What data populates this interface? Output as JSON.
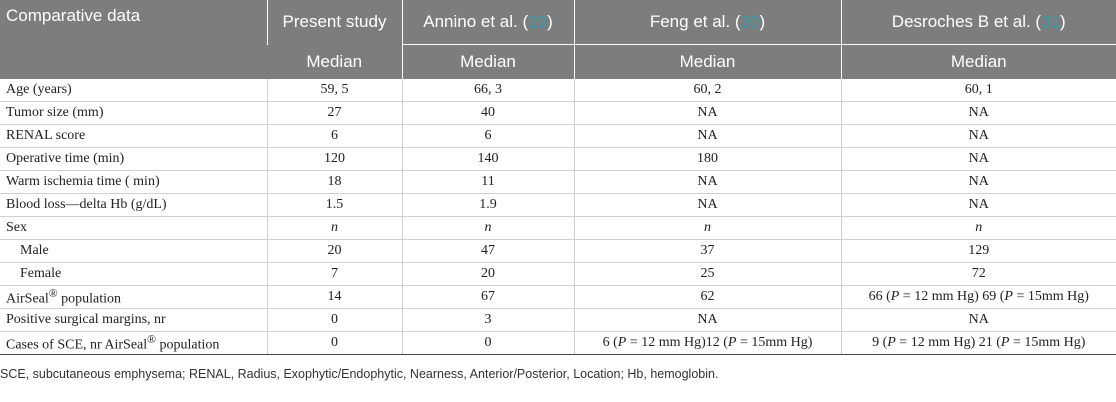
{
  "header": {
    "col0": "Comparative data",
    "col1": "Present study",
    "col2_author": "Annino et al.",
    "col2_ref": "29",
    "col3_author": "Feng et al.",
    "col3_ref": "30",
    "col4_author": "Desroches B et al.",
    "col4_ref": "31",
    "subheader": "Median"
  },
  "rows": [
    {
      "label": "Age (years)",
      "present": "59, 5",
      "annino": "66, 3",
      "feng": "60, 2",
      "desroches": "60, 1"
    },
    {
      "label": "Tumor size (mm)",
      "present": "27",
      "annino": "40",
      "feng": "NA",
      "desroches": "NA"
    },
    {
      "label": "RENAL score",
      "present": "6",
      "annino": "6",
      "feng": "NA",
      "desroches": "NA"
    },
    {
      "label": "Operative time (min)",
      "present": "120",
      "annino": "140",
      "feng": "180",
      "desroches": "NA"
    },
    {
      "label": "Warm ischemia time ( min)",
      "present": "18",
      "annino": "11",
      "feng": "NA",
      "desroches": "NA"
    },
    {
      "label": "Blood loss—delta Hb (g/dL)",
      "present": "1.5",
      "annino": "1.9",
      "feng": "NA",
      "desroches": "NA"
    },
    {
      "label": "Sex",
      "present": "n",
      "annino": "n",
      "feng": "n",
      "desroches": "n"
    },
    {
      "label": "Male",
      "present": "20",
      "annino": "47",
      "feng": "37",
      "desroches": "129"
    },
    {
      "label": "Female",
      "present": "7",
      "annino": "20",
      "feng": "25",
      "desroches": "72"
    },
    {
      "label_pre": "AirSeal",
      "label_sup": "®",
      "label_post": " population",
      "present": "14",
      "annino": "67",
      "feng": "62",
      "desroches_a": "66 (",
      "desroches_p1": "P",
      "desroches_b": " = 12 mm Hg) 69 (",
      "desroches_p2": "P",
      "desroches_c": " = 15mm Hg)"
    },
    {
      "label": "Positive surgical margins, nr",
      "present": "0",
      "annino": "3",
      "feng": "NA",
      "desroches": "NA"
    },
    {
      "label_pre": "Cases of SCE, nr AirSeal",
      "label_sup": "®",
      "label_post": " population",
      "present": "0",
      "annino": "0",
      "feng_a": "6 (",
      "feng_p1": "P",
      "feng_b": " = 12 mm Hg)12 (",
      "feng_p2": "P",
      "feng_c": " = 15mm Hg)",
      "desroches_a": "9 (",
      "desroches_p1": "P",
      "desroches_b": " = 12 mm Hg) 21 (",
      "desroches_p2": "P",
      "desroches_c": " = 15mm Hg)"
    }
  ],
  "footnote": "SCE, subcutaneous emphysema; RENAL, Radius, Exophytic/Endophytic, Nearness, Anterior/Posterior, Location; Hb, hemoglobin."
}
